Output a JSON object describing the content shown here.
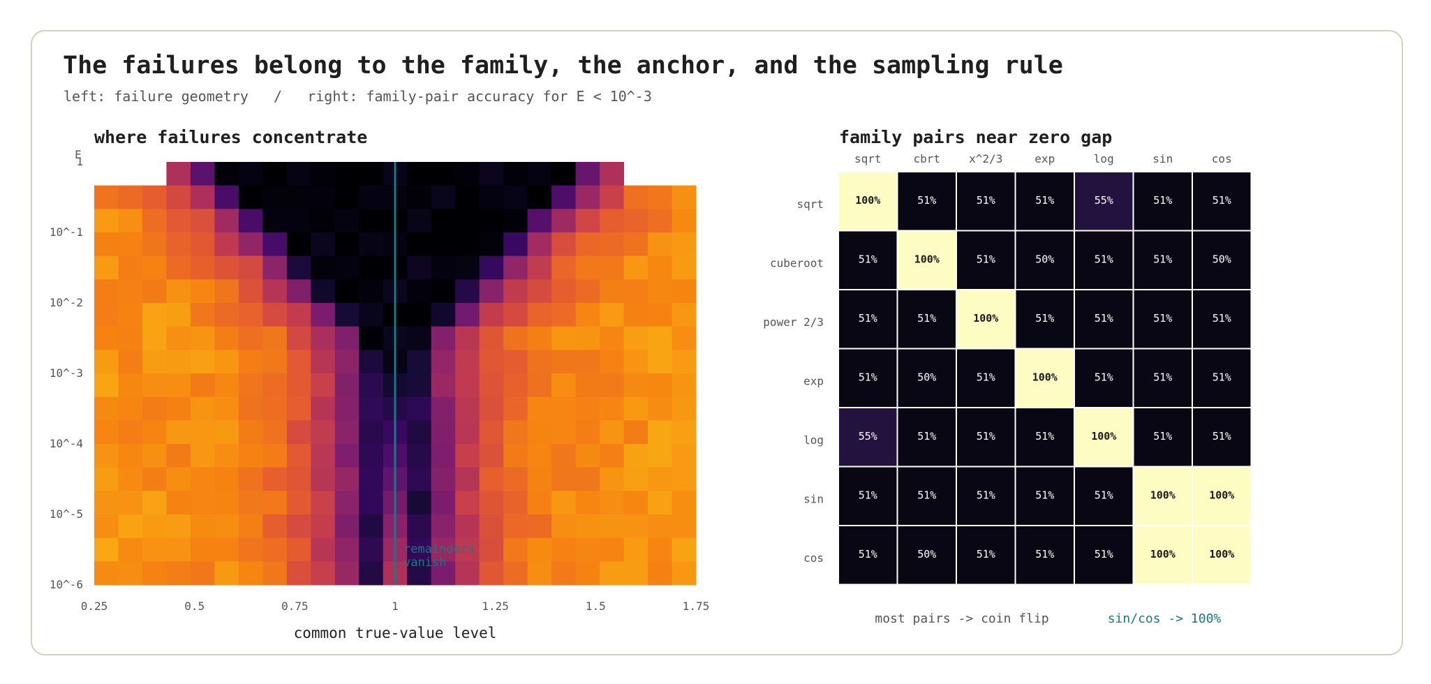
{
  "header": {
    "title": "The failures belong to the family, the anchor, and the sampling rule",
    "subtitle": "left: failure geometry   /   right: family-pair accuracy for E < 10^-3"
  },
  "colors": {
    "annotation": "#167a82",
    "matrix_high": "#fcfcc3",
    "matrix_low": "#0a0714",
    "matrix_mid": "#22123e"
  },
  "chart_data": [
    {
      "type": "heatmap",
      "title": "where failures concentrate",
      "xlabel": "common true-value level",
      "ylabel": "E",
      "x_range": [
        0.25,
        1.75
      ],
      "y_scale": "log",
      "y_range": [
        1e-06,
        1
      ],
      "x_ticks": [
        "0.25",
        "0.5",
        "0.75",
        "1",
        "1.25",
        "1.5",
        "1.75"
      ],
      "y_ticks": [
        "1",
        "10^-1",
        "10^-2",
        "10^-3",
        "10^-4",
        "10^-5",
        "10^-6"
      ],
      "annotation": {
        "text_line1": "remainders",
        "text_line2": "vanish",
        "x": 1
      },
      "reference_line_x": 1
    },
    {
      "type": "heatmap",
      "title": "family pairs near zero gap",
      "row_labels": [
        "sqrt",
        "cuberoot",
        "power 2/3",
        "exp",
        "log",
        "sin",
        "cos"
      ],
      "col_labels": [
        "sqrt",
        "cbrt",
        "x^2/3",
        "exp",
        "log",
        "sin",
        "cos"
      ],
      "values": [
        [
          100,
          51,
          51,
          51,
          55,
          51,
          51
        ],
        [
          51,
          100,
          51,
          50,
          51,
          51,
          50
        ],
        [
          51,
          51,
          100,
          51,
          51,
          51,
          51
        ],
        [
          51,
          50,
          51,
          100,
          51,
          51,
          51
        ],
        [
          55,
          51,
          51,
          51,
          100,
          51,
          51
        ],
        [
          51,
          51,
          51,
          51,
          51,
          100,
          100
        ],
        [
          51,
          50,
          51,
          51,
          51,
          100,
          100
        ]
      ],
      "unit": "%",
      "notes": {
        "left": "most pairs -> coin flip",
        "right": "sin/cos -> 100%"
      }
    }
  ]
}
